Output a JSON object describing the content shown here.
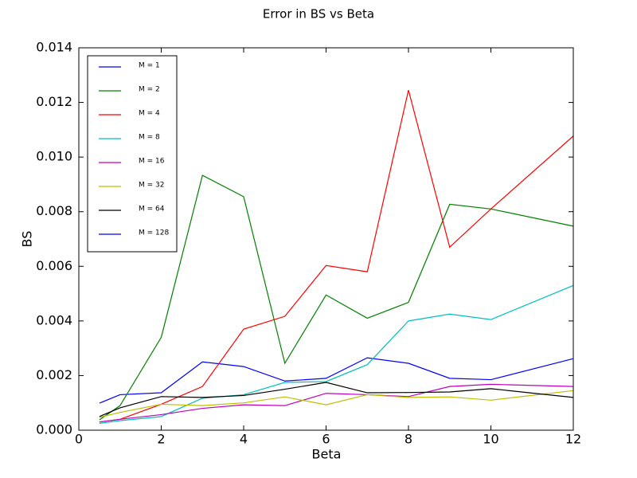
{
  "chart_data": {
    "type": "line",
    "title": "Error in BS vs Beta",
    "xlabel": "Beta",
    "ylabel": "BS",
    "x": [
      0.5,
      1,
      2,
      3,
      4,
      5,
      6,
      7,
      8,
      9,
      10,
      12
    ],
    "series": [
      {
        "name": "M = 1",
        "color": "#0000ff",
        "values": [
          0.00099,
          0.0013,
          0.00137,
          0.0025,
          0.00233,
          0.0018,
          0.0019,
          0.00265,
          0.00245,
          0.0019,
          0.00185,
          0.00262
        ]
      },
      {
        "name": "M = 2",
        "color": "#008000",
        "values": [
          0.00038,
          0.0009,
          0.0034,
          0.00933,
          0.00855,
          0.00245,
          0.00495,
          0.0041,
          0.00468,
          0.00827,
          0.0081,
          0.00747
        ]
      },
      {
        "name": "M = 4",
        "color": "#ff0000",
        "values": [
          0.0003,
          0.0004,
          0.00095,
          0.0016,
          0.0037,
          0.00417,
          0.00603,
          0.0058,
          0.01245,
          0.0067,
          0.0081,
          0.01077
        ]
      },
      {
        "name": "M = 8",
        "color": "#00bfbf",
        "values": [
          0.00025,
          0.00035,
          0.0005,
          0.00117,
          0.0013,
          0.00175,
          0.00178,
          0.0024,
          0.004,
          0.00425,
          0.00405,
          0.0053
        ]
      },
      {
        "name": "M = 16",
        "color": "#bf00bf",
        "values": [
          0.0003,
          0.0004,
          0.00057,
          0.0008,
          0.00093,
          0.0009,
          0.00135,
          0.0013,
          0.00123,
          0.0016,
          0.00168,
          0.0016
        ]
      },
      {
        "name": "M = 32",
        "color": "#bfbf00",
        "values": [
          0.00047,
          0.00065,
          0.00095,
          0.0009,
          0.001,
          0.00122,
          0.00093,
          0.0013,
          0.0012,
          0.00122,
          0.0011,
          0.00145
        ]
      },
      {
        "name": "M = 64",
        "color": "#000000",
        "values": [
          0.0005,
          0.00082,
          0.00123,
          0.0012,
          0.00127,
          0.0015,
          0.00175,
          0.00137,
          0.00138,
          0.0014,
          0.00152,
          0.0012
        ]
      },
      {
        "name": "M = 128",
        "color": "#0000ff",
        "values": [
          null,
          null,
          null,
          null,
          null,
          null,
          null,
          null,
          null,
          null,
          null,
          null
        ]
      }
    ],
    "xlim": [
      0,
      12
    ],
    "xticks": [
      0,
      2,
      4,
      6,
      8,
      10,
      12
    ],
    "ylim": [
      0,
      0.014
    ],
    "yticks": [
      {
        "value": 0,
        "label": "0.000"
      },
      {
        "value": 0.002,
        "label": "0.002"
      },
      {
        "value": 0.004,
        "label": "0.004"
      },
      {
        "value": 0.006,
        "label": "0.006"
      },
      {
        "value": 0.008,
        "label": "0.008"
      },
      {
        "value": 0.01,
        "label": "0.010"
      },
      {
        "value": 0.012,
        "label": "0.012"
      },
      {
        "value": 0.014,
        "label": "0.014"
      }
    ],
    "grid": false,
    "legend": "upper left"
  }
}
